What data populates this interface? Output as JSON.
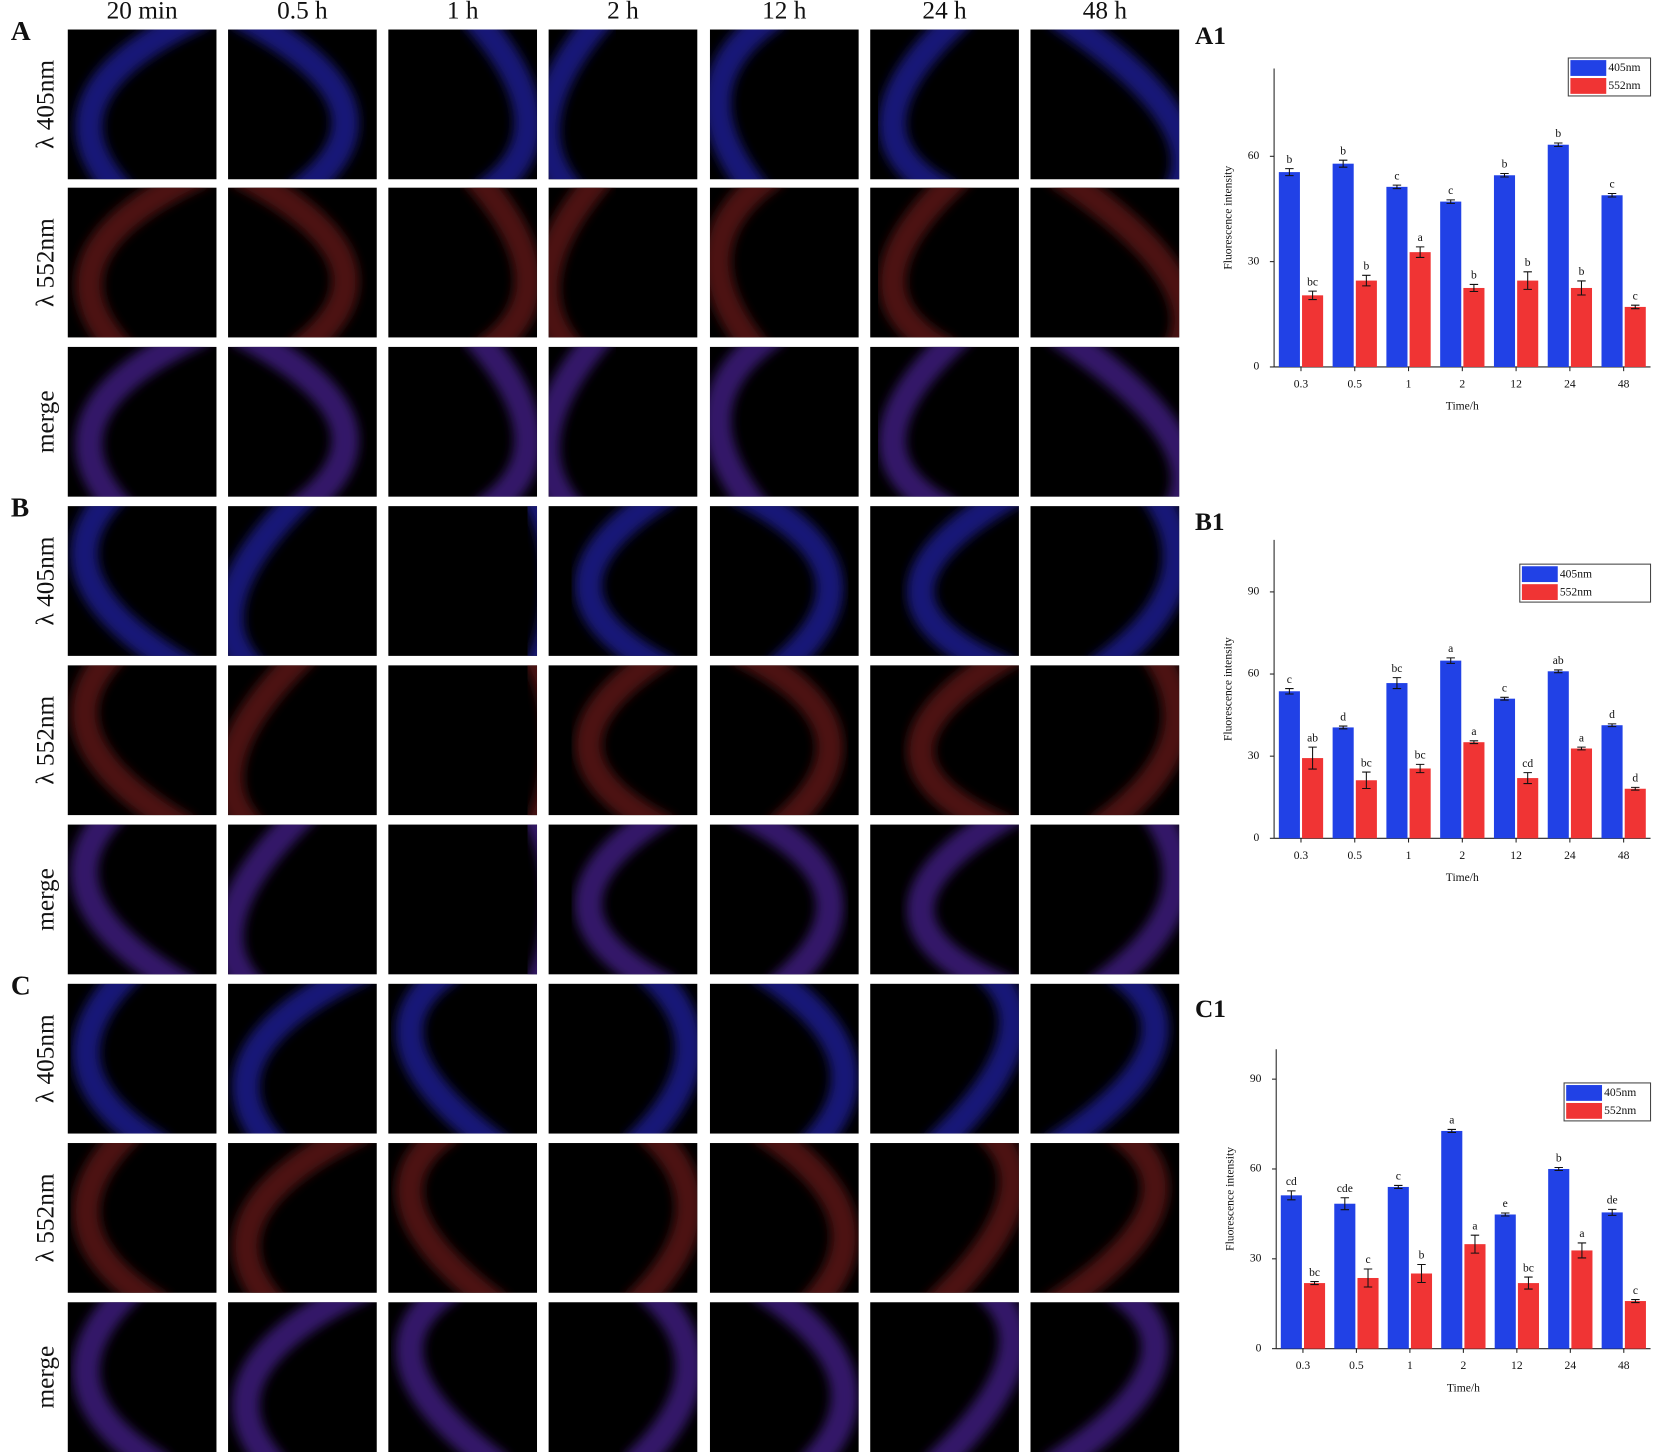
{
  "figure": {
    "columns": [
      "20 min",
      "0.5 h",
      "1 h",
      "2 h",
      "12 h",
      "24 h",
      "48 h"
    ],
    "panels": [
      {
        "label": "A",
        "rows": [
          "λ 405nm",
          "λ 552nm",
          "merge"
        ]
      },
      {
        "label": "B",
        "rows": [
          "λ 405nm",
          "λ 552nm",
          "merge"
        ]
      },
      {
        "label": "C",
        "rows": [
          "λ 405nm",
          "λ 552nm",
          "merge"
        ]
      }
    ]
  },
  "chart_data": [
    {
      "type": "bar",
      "title": "A1",
      "x_label": "Time/h",
      "y_label": "Fluorescence intensity",
      "categories": [
        "0.3",
        "0.5",
        "1",
        "2",
        "12",
        "24",
        "48"
      ],
      "ylim": [
        0,
        85
      ],
      "yticks": [
        0,
        30,
        60
      ],
      "legend": "upper right",
      "series": [
        {
          "name": "405nm",
          "color": "#2141e6",
          "values": [
            55.5,
            57.9,
            51.3,
            47.1,
            54.6,
            63.3,
            48.9
          ],
          "errors": [
            1,
            1,
            0.5,
            0.5,
            0.5,
            0.5,
            0.5
          ],
          "letters": [
            "b",
            "b",
            "c",
            "c",
            "b",
            "b",
            "c"
          ]
        },
        {
          "name": "552nm",
          "color": "#f03434",
          "values": [
            20.4,
            24.6,
            32.7,
            22.5,
            24.6,
            22.5,
            17.1
          ],
          "errors": [
            1.2,
            1.5,
            1.5,
            1,
            2.5,
            2,
            0.5
          ],
          "letters": [
            "bc",
            "b",
            "a",
            "b",
            "b",
            "b",
            "c"
          ]
        }
      ]
    },
    {
      "type": "bar",
      "title": "B1",
      "x_label": "Time/h",
      "y_label": "Fluorescence intensity",
      "categories": [
        "0.3",
        "0.5",
        "1",
        "2",
        "12",
        "24",
        "48"
      ],
      "ylim": [
        0,
        109
      ],
      "yticks": [
        0,
        30,
        60,
        90
      ],
      "legend": "upper right",
      "series": [
        {
          "name": "405nm",
          "color": "#2141e6",
          "values": [
            53.7,
            40.5,
            56.7,
            64.9,
            51,
            61,
            41.3
          ],
          "errors": [
            1,
            0.5,
            2,
            1,
            0.5,
            0.5,
            0.5
          ],
          "letters": [
            "c",
            "d",
            "bc",
            "a",
            "c",
            "ab",
            "d"
          ]
        },
        {
          "name": "552nm",
          "color": "#f03434",
          "values": [
            29.3,
            21.2,
            25.5,
            35.1,
            22,
            32.8,
            18.1
          ],
          "errors": [
            4,
            3,
            1.5,
            0.5,
            2,
            0.5,
            0.5
          ],
          "letters": [
            "ab",
            "bc",
            "bc",
            "a",
            "cd",
            "a",
            "d"
          ]
        }
      ]
    },
    {
      "type": "bar",
      "title": "C1",
      "x_label": "Time/h",
      "y_label": "Fluorescence intensity",
      "categories": [
        "0.3",
        "0.5",
        "1",
        "2",
        "12",
        "24",
        "48"
      ],
      "ylim": [
        0,
        100
      ],
      "yticks": [
        0,
        30,
        60,
        90
      ],
      "legend": "upper right",
      "series": [
        {
          "name": "405nm",
          "color": "#2141e6",
          "values": [
            51.2,
            48.4,
            54,
            72.7,
            44.8,
            60,
            45.5
          ],
          "errors": [
            1.5,
            2,
            0.5,
            0.5,
            0.5,
            0.5,
            1
          ],
          "letters": [
            "cd",
            "cde",
            "c",
            "a",
            "e",
            "b",
            "de"
          ]
        },
        {
          "name": "552nm",
          "color": "#f03434",
          "values": [
            21.9,
            23.6,
            25.1,
            34.9,
            21.9,
            32.8,
            15.9
          ],
          "errors": [
            0.5,
            3,
            3,
            3,
            2,
            2.5,
            0.5
          ],
          "letters": [
            "bc",
            "c",
            "b",
            "a",
            "bc",
            "a",
            "c"
          ]
        }
      ]
    }
  ]
}
